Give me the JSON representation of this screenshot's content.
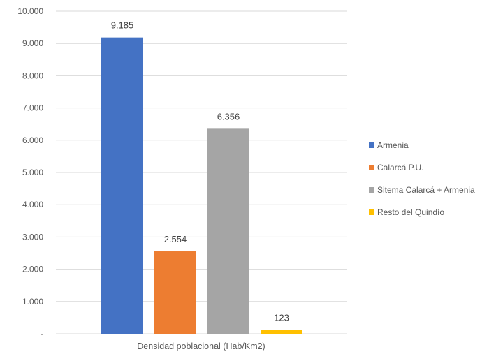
{
  "chart_data": {
    "type": "bar",
    "title": "",
    "xlabel": "",
    "ylabel": "",
    "categories": [
      "Densidad poblacional (Hab/Km2)"
    ],
    "series": [
      {
        "name": "Armenia",
        "values": [
          9185
        ],
        "label": "9.185",
        "color": "#4472C4"
      },
      {
        "name": "Calarcá P.U.",
        "values": [
          2554
        ],
        "label": "2.554",
        "color": "#ED7D31"
      },
      {
        "name": "Sitema Calarcá + Armenia",
        "values": [
          6356
        ],
        "label": "6.356",
        "color": "#A5A5A5"
      },
      {
        "name": "Resto del Quindío",
        "values": [
          123
        ],
        "label": "123",
        "color": "#FFC000"
      }
    ],
    "ylim": [
      0,
      10000
    ],
    "yticks": [
      {
        "value": 0,
        "label": "-"
      },
      {
        "value": 1000,
        "label": "1.000"
      },
      {
        "value": 2000,
        "label": "2.000"
      },
      {
        "value": 3000,
        "label": "3.000"
      },
      {
        "value": 4000,
        "label": "4.000"
      },
      {
        "value": 5000,
        "label": "5.000"
      },
      {
        "value": 6000,
        "label": "6.000"
      },
      {
        "value": 7000,
        "label": "7.000"
      },
      {
        "value": 8000,
        "label": "8.000"
      },
      {
        "value": 9000,
        "label": "9.000"
      },
      {
        "value": 10000,
        "label": "10.000"
      }
    ],
    "grid": true,
    "legend_position": "right"
  }
}
